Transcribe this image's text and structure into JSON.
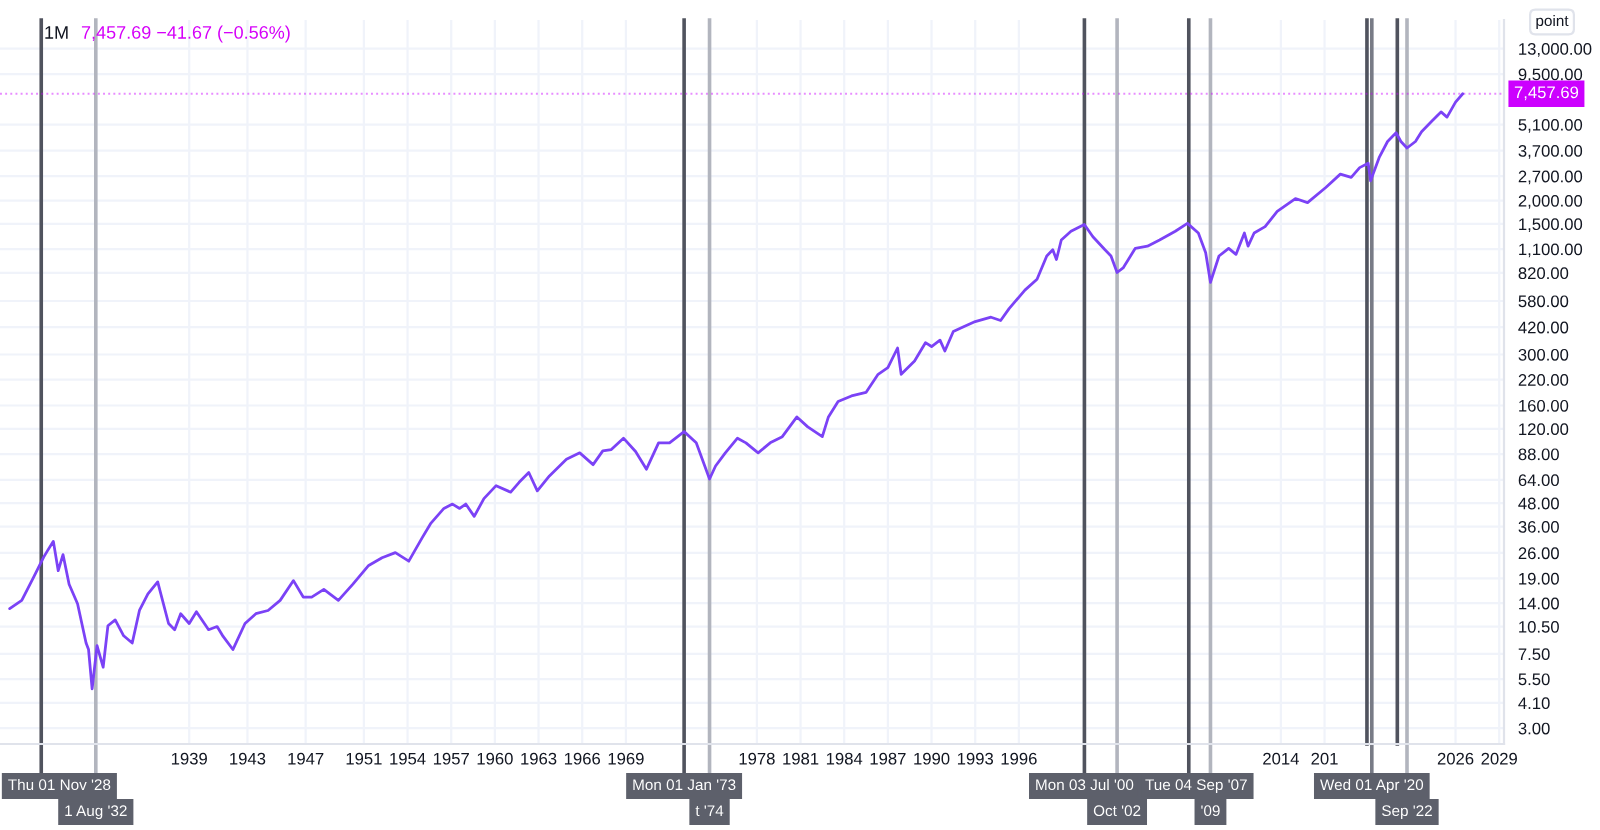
{
  "chart_data": {
    "type": "line",
    "title": "1M",
    "subtitle": "7,457.69 −41.67 (−0.56%)",
    "ylabel": "point",
    "x": [
      "1926-09",
      "1927-07",
      "1928-05",
      "1929-01",
      "1929-04",
      "1929-09",
      "1930-01",
      "1930-05",
      "1930-10",
      "1931-05",
      "1931-12",
      "1932-02",
      "1932-05",
      "1932-09",
      "1933-02",
      "1933-06",
      "1933-12",
      "1934-07",
      "1935-02",
      "1935-08",
      "1936-03",
      "1936-11",
      "1937-08",
      "1938-01",
      "1938-06",
      "1939-01",
      "1939-07",
      "1940-05",
      "1940-12",
      "1941-05",
      "1942-01",
      "1942-11",
      "1943-08",
      "1944-06",
      "1945-04",
      "1946-03",
      "1946-11",
      "1947-06",
      "1948-04",
      "1949-04",
      "1950-04",
      "1951-05",
      "1952-04",
      "1953-03",
      "1954-02",
      "1955-01",
      "1955-08",
      "1956-07",
      "1957-02",
      "1957-08",
      "1958-01",
      "1958-08",
      "1959-04",
      "1960-02",
      "1961-02",
      "1961-09",
      "1962-05",
      "1962-12",
      "1963-10",
      "1964-12",
      "1965-11",
      "1966-10",
      "1967-06",
      "1968-01",
      "1968-11",
      "1969-09",
      "1970-06",
      "1971-04",
      "1972-01",
      "1973-01",
      "1973-11",
      "1974-10",
      "1975-03",
      "1975-11",
      "1976-09",
      "1977-04",
      "1978-02",
      "1978-12",
      "1979-10",
      "1980-10",
      "1981-07",
      "1982-07",
      "1982-12",
      "1983-08",
      "1984-07",
      "1985-07",
      "1986-05",
      "1987-01",
      "1987-09",
      "1987-12",
      "1988-11",
      "1989-08",
      "1990-01",
      "1990-08",
      "1990-12",
      "1991-07",
      "1992-03",
      "1993-01",
      "1994-02",
      "1994-10",
      "1995-05",
      "1996-06",
      "1997-04",
      "1997-12",
      "1998-05",
      "1998-08",
      "1998-12",
      "1999-08",
      "2000-07",
      "2001-02",
      "2001-12",
      "2002-05",
      "2002-10",
      "2003-03",
      "2004-01",
      "2004-11",
      "2005-09",
      "2006-10",
      "2007-08",
      "2008-05",
      "2008-11",
      "2009-03",
      "2009-10",
      "2010-06",
      "2010-12",
      "2011-07",
      "2011-10",
      "2012-03",
      "2012-12",
      "2013-10",
      "2015-01",
      "2015-11",
      "2017-02",
      "2018-02",
      "2018-11",
      "2019-06",
      "2020-01",
      "2020-03",
      "2020-10",
      "2021-05",
      "2021-12",
      "2022-04",
      "2022-09",
      "2023-04",
      "2023-09",
      "2024-05",
      "2025-01",
      "2025-06",
      "2026-01",
      "2026-07"
    ],
    "series": [
      {
        "color": "#7b42f6",
        "values": [
          13.1,
          14.5,
          19.4,
          24.7,
          26.6,
          30,
          20.9,
          25.5,
          17.7,
          13.9,
          8.57,
          7.91,
          4.87,
          8.3,
          6.36,
          10.6,
          11.4,
          9.37,
          8.57,
          12.8,
          15.7,
          18.2,
          10.9,
          10.1,
          12.3,
          10.9,
          12.6,
          10.1,
          10.5,
          9.3,
          7.91,
          10.9,
          12.3,
          12.8,
          14.5,
          18.5,
          15.1,
          15.1,
          16.6,
          14.5,
          17.7,
          22.3,
          24.5,
          26.1,
          23.5,
          31.3,
          37.3,
          45,
          47.5,
          45,
          47.5,
          40.8,
          50.8,
          59.6,
          55.0,
          62.1,
          70.1,
          55.9,
          67.2,
          82.4,
          89.3,
          77.2,
          91.5,
          93.0,
          107,
          90.8,
          73.0,
          101,
          101,
          116,
          101,
          64.7,
          75.9,
          89.3,
          107,
          101,
          89.3,
          101,
          109,
          139,
          123,
          109,
          139,
          168,
          180,
          188,
          235,
          255,
          325,
          235,
          277,
          347,
          331,
          358,
          313,
          398,
          421,
          450,
          475,
          456,
          528,
          663,
          759,
          1010,
          1090,
          967,
          1230,
          1370,
          1490,
          1280,
          1090,
          1010,
          824,
          872,
          1110,
          1140,
          1230,
          1370,
          1510,
          1340,
          1050,
          730,
          1010,
          1110,
          1030,
          1340,
          1140,
          1340,
          1450,
          1750,
          2050,
          1950,
          2350,
          2770,
          2660,
          3000,
          3170,
          2550,
          3390,
          4140,
          4610,
          4140,
          3820,
          4140,
          4670,
          5280,
          5960,
          5590,
          6720,
          7457.69
        ]
      }
    ],
    "log": "y",
    "grid": true,
    "xlim": [
      "1926-01",
      "2029-05"
    ],
    "xticks": [
      "1939",
      "1943",
      "1947",
      "1951",
      "1954",
      "1957",
      "1960",
      "1963",
      "1966",
      "1969",
      "1978",
      "1981",
      "1984",
      "1987",
      "1990",
      "1993",
      "1996",
      "2014",
      {
        "value": "2017",
        "label": "201"
      },
      "2026",
      "2029"
    ],
    "ylim": [
      2.47,
      18500
    ],
    "yticks": [
      {
        "value": 3,
        "label": "3.00"
      },
      {
        "value": 4.1,
        "label": "4.10"
      },
      {
        "value": 5.5,
        "label": "5.50"
      },
      {
        "value": 7.5,
        "label": "7.50"
      },
      {
        "value": 10.5,
        "label": "10.50"
      },
      {
        "value": 14,
        "label": "14.00"
      },
      {
        "value": 19,
        "label": "19.00"
      },
      {
        "value": 26,
        "label": "26.00"
      },
      {
        "value": 36,
        "label": "36.00"
      },
      {
        "value": 48,
        "label": "48.00"
      },
      {
        "value": 64,
        "label": "64.00"
      },
      {
        "value": 88,
        "label": "88.00"
      },
      {
        "value": 120,
        "label": "120.00"
      },
      {
        "value": 160,
        "label": "160.00"
      },
      {
        "value": 220,
        "label": "220.00"
      },
      {
        "value": 300,
        "label": "300.00"
      },
      {
        "value": 420,
        "label": "420.00"
      },
      {
        "value": 580,
        "label": "580.00"
      },
      {
        "value": 820,
        "label": "820.00"
      },
      {
        "value": 1100,
        "label": "1,100.00"
      },
      {
        "value": 1500,
        "label": "1,500.00"
      },
      {
        "value": 2000,
        "label": "2,000.00"
      },
      {
        "value": 2700,
        "label": "2,700.00"
      },
      {
        "value": 3700,
        "label": "3,700.00"
      },
      {
        "value": 5100,
        "label": "5,100.00"
      },
      {
        "value": 9500,
        "label": "9,500.00"
      },
      {
        "value": 13000,
        "label": "13,000.00"
      }
    ],
    "ref_lines": [
      {
        "axis": "x",
        "value": "1928-11-01",
        "label": "Thu 01 Nov '28",
        "color": "#50535e"
      },
      {
        "axis": "x",
        "value": "1932-08-01",
        "label": "1 Aug '32",
        "color": "#b2b5be"
      },
      {
        "axis": "x",
        "value": "1973-01-01",
        "label": "Mon 01 Jan '73",
        "color": "#50535e"
      },
      {
        "axis": "x",
        "value": "1974-10-01",
        "label": "t '74",
        "color": "#b2b5be"
      },
      {
        "axis": "x",
        "value": "2000-07-03",
        "label": "Mon 03 Jul '00",
        "color": "#50535e"
      },
      {
        "axis": "x",
        "value": "2002-10-01",
        "label": "Oct '02",
        "color": "#b2b5be"
      },
      {
        "axis": "x",
        "value": "2007-09-04",
        "label": "Tue 04 Sep '07",
        "color": "#50535e"
      },
      {
        "axis": "x",
        "value": "2009-03-01",
        "label": "'09",
        "color": "#b2b5be"
      },
      {
        "axis": "x",
        "value": "2019-12-01",
        "label": null,
        "color": "#50535e"
      },
      {
        "axis": "x",
        "value": "2020-04-01",
        "label": "Wed 01 Apr '20",
        "color": "#787b86"
      },
      {
        "axis": "x",
        "value": "2022-01-01",
        "label": null,
        "color": "#50535e"
      },
      {
        "axis": "x",
        "value": "2022-09-01",
        "label": "Sep '22",
        "color": "#b2b5be"
      },
      {
        "axis": "y",
        "value": 7457.69,
        "label": "7,457.69",
        "color": "#cc00ff",
        "line_style": "dotted"
      }
    ]
  }
}
